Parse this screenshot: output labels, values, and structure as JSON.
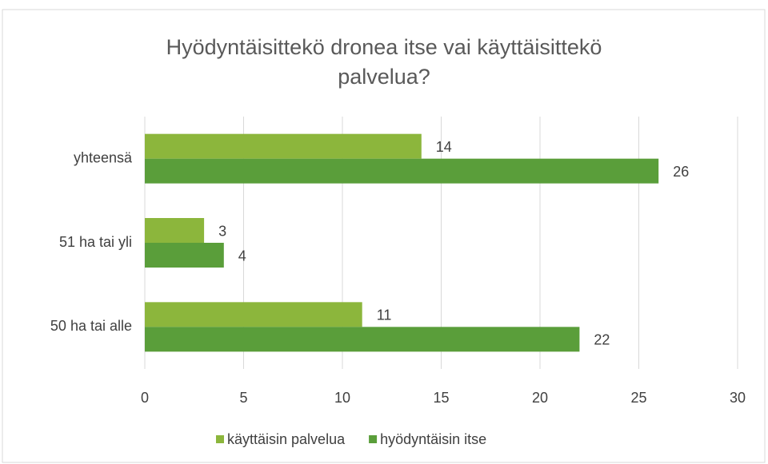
{
  "chart_data": {
    "type": "bar",
    "orientation": "horizontal",
    "title": [
      "Hyödyntäisittekö dronea itse vai käyttäisittekö",
      "palvelua?"
    ],
    "categories": [
      "yhteensä",
      "51 ha tai yli",
      "50 ha tai alle"
    ],
    "series": [
      {
        "name": "käyttäisin palvelua",
        "color": "#8cb63c",
        "values": [
          14,
          3,
          11
        ]
      },
      {
        "name": "hyödyntäisin itse",
        "color": "#5a9e3a",
        "values": [
          26,
          4,
          22
        ]
      }
    ],
    "xlim": [
      0,
      30
    ],
    "xticks": [
      0,
      5,
      10,
      15,
      20,
      25,
      30
    ],
    "grid": true,
    "legend": "bottom"
  }
}
